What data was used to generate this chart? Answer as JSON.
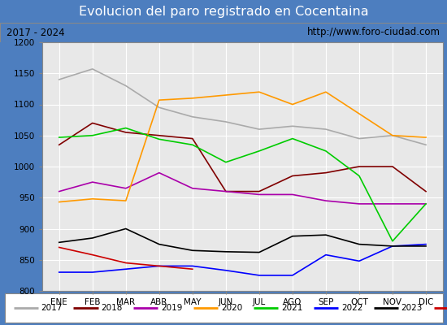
{
  "title": "Evolucion del paro registrado en Cocentaina",
  "subtitle_left": "2017 - 2024",
  "subtitle_right": "http://www.foro-ciudad.com",
  "ylim": [
    800,
    1200
  ],
  "months": [
    "ENE",
    "FEB",
    "MAR",
    "ABR",
    "MAY",
    "JUN",
    "JUL",
    "AGO",
    "SEP",
    "OCT",
    "NOV",
    "DIC"
  ],
  "series": {
    "2017": {
      "color": "#aaaaaa",
      "data": [
        1140,
        1157,
        1130,
        1095,
        1080,
        1072,
        1060,
        1065,
        1060,
        1045,
        1050,
        1035
      ]
    },
    "2018": {
      "color": "#800000",
      "data": [
        1035,
        1070,
        1055,
        1050,
        1045,
        960,
        960,
        985,
        990,
        1000,
        1000,
        960
      ]
    },
    "2019": {
      "color": "#aa00aa",
      "data": [
        960,
        975,
        965,
        990,
        965,
        960,
        955,
        955,
        945,
        940,
        940,
        940
      ]
    },
    "2020": {
      "color": "#ff9900",
      "data": [
        943,
        948,
        945,
        1107,
        1110,
        1115,
        1120,
        1100,
        1120,
        1085,
        1050,
        1047
      ]
    },
    "2021": {
      "color": "#00cc00",
      "data": [
        1047,
        1050,
        1062,
        1044,
        1035,
        1007,
        1025,
        1045,
        1025,
        985,
        880,
        940
      ]
    },
    "2022": {
      "color": "#0000ff",
      "data": [
        830,
        830,
        835,
        840,
        840,
        833,
        825,
        825,
        858,
        848,
        872,
        875
      ]
    },
    "2023": {
      "color": "#000000",
      "data": [
        878,
        885,
        900,
        875,
        865,
        863,
        862,
        888,
        890,
        875,
        872,
        872
      ]
    },
    "2024": {
      "color": "#cc0000",
      "data": [
        870,
        858,
        845,
        840,
        835,
        null,
        null,
        null,
        null,
        null,
        null,
        null
      ]
    }
  },
  "title_bg": "#4d7ebf",
  "title_color": "#ffffff",
  "subtitle_bg": "#e8e8e8",
  "plot_bg": "#e8e8e8",
  "grid_color": "#ffffff",
  "outer_bg": "#4d7ebf"
}
